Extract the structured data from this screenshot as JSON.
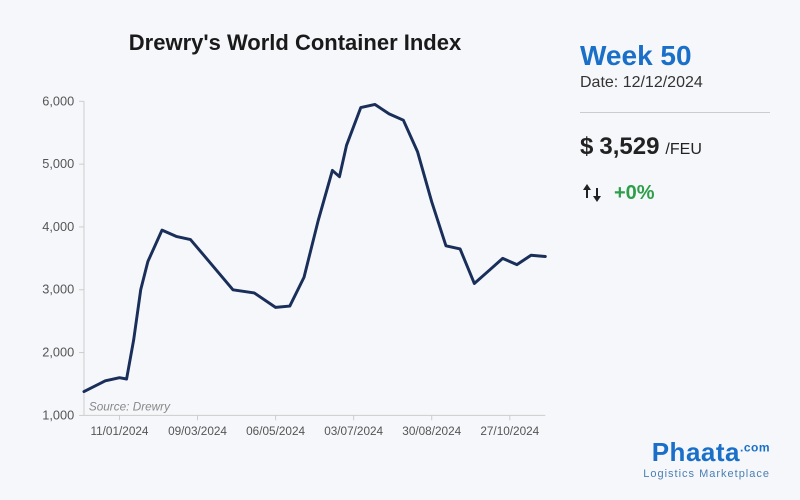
{
  "chart": {
    "title": "Drewry's World Container Index",
    "type": "line",
    "source_label": "Source: Drewry",
    "line_color": "#1a2e5a",
    "line_width": 3,
    "background_color": "#f5f7fa",
    "axis_color": "#cccccc",
    "tick_color": "#555555",
    "ylim": [
      1000,
      6000
    ],
    "yticks": [
      1000,
      2000,
      3000,
      4000,
      5000,
      6000
    ],
    "xticks": [
      "11/01/2024",
      "09/03/2024",
      "06/05/2024",
      "03/07/2024",
      "30/08/2024",
      "27/10/2024"
    ],
    "data": [
      {
        "x": 0,
        "y": 1380
      },
      {
        "x": 3,
        "y": 1550
      },
      {
        "x": 5,
        "y": 1600
      },
      {
        "x": 6,
        "y": 1580
      },
      {
        "x": 7,
        "y": 2200
      },
      {
        "x": 8,
        "y": 3000
      },
      {
        "x": 9,
        "y": 3450
      },
      {
        "x": 11,
        "y": 3950
      },
      {
        "x": 13,
        "y": 3850
      },
      {
        "x": 15,
        "y": 3800
      },
      {
        "x": 18,
        "y": 3400
      },
      {
        "x": 21,
        "y": 3000
      },
      {
        "x": 24,
        "y": 2950
      },
      {
        "x": 27,
        "y": 2720
      },
      {
        "x": 29,
        "y": 2740
      },
      {
        "x": 31,
        "y": 3200
      },
      {
        "x": 33,
        "y": 4100
      },
      {
        "x": 35,
        "y": 4900
      },
      {
        "x": 36,
        "y": 4800
      },
      {
        "x": 37,
        "y": 5300
      },
      {
        "x": 39,
        "y": 5900
      },
      {
        "x": 41,
        "y": 5950
      },
      {
        "x": 43,
        "y": 5800
      },
      {
        "x": 45,
        "y": 5700
      },
      {
        "x": 47,
        "y": 5200
      },
      {
        "x": 49,
        "y": 4400
      },
      {
        "x": 51,
        "y": 3700
      },
      {
        "x": 53,
        "y": 3650
      },
      {
        "x": 55,
        "y": 3100
      },
      {
        "x": 57,
        "y": 3300
      },
      {
        "x": 59,
        "y": 3500
      },
      {
        "x": 61,
        "y": 3400
      },
      {
        "x": 63,
        "y": 3550
      },
      {
        "x": 65,
        "y": 3529
      }
    ],
    "x_range": 65
  },
  "sidebar": {
    "week_label": "Week 50",
    "date_label": "Date: 12/12/2024",
    "currency_symbol": "$",
    "price_value": "3,529",
    "price_unit": "/FEU",
    "change_value": "+0%",
    "change_color": "#2e9e4a",
    "accent_color": "#1a6fc9"
  },
  "logo": {
    "main": "Phaata",
    "suffix": ".com",
    "sub": "Logistics  Marketplace"
  }
}
